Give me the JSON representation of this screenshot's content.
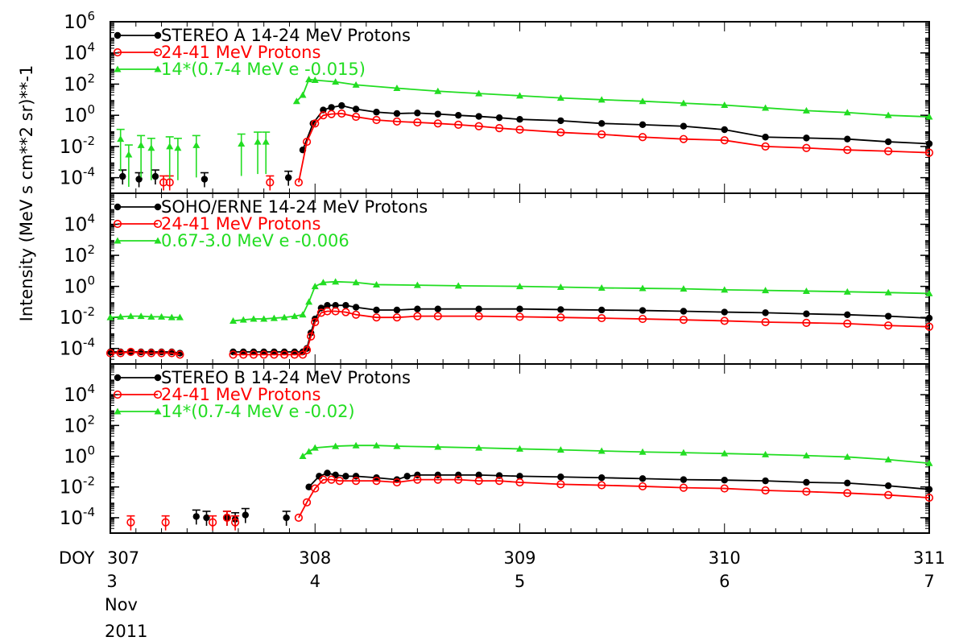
{
  "chart_data": {
    "type": "line",
    "ylabel": "Intensity (MeV s cm**2 sr)**-1",
    "y_scale": "log",
    "x_axis": {
      "label": "DOY",
      "range": [
        307,
        311
      ],
      "doy_ticks": [
        "307",
        "308",
        "309",
        "310",
        "311"
      ],
      "day_ticks": [
        "3",
        "4",
        "5",
        "6",
        "7"
      ],
      "month": "Nov",
      "year": "2011"
    },
    "colors": {
      "black": "#000000",
      "red": "#ff0000",
      "green": "#22dd22"
    },
    "panels": [
      {
        "ylim_exp": [
          -5,
          6
        ],
        "y_tick_exps": [
          6,
          4,
          2,
          0,
          -2,
          -4
        ],
        "series": [
          {
            "name": "STEREO A 14-24 MeV Protons",
            "color": "black",
            "marker": "dot",
            "x": [
              307.94,
              307.99,
              308.04,
              308.08,
              308.13,
              308.2,
              308.3,
              308.4,
              308.5,
              308.6,
              308.7,
              308.8,
              308.9,
              309.0,
              309.2,
              309.4,
              309.6,
              309.8,
              310.0,
              310.2,
              310.4,
              310.6,
              310.8,
              311.0
            ],
            "y": [
              0.006,
              0.3,
              2.2,
              3.2,
              4.2,
              2.5,
              1.6,
              1.3,
              1.4,
              1.2,
              1.0,
              0.85,
              0.7,
              0.55,
              0.45,
              0.3,
              0.25,
              0.2,
              0.12,
              0.04,
              0.035,
              0.03,
              0.02,
              0.015
            ],
            "sparse_x": [
              307.06,
              307.14,
              307.22,
              307.46,
              307.87
            ],
            "sparse_y": [
              0.00012,
              8e-05,
              0.00012,
              8e-05,
              0.0001
            ]
          },
          {
            "name": "24-41 MeV Protons",
            "color": "red",
            "marker": "circle",
            "x": [
              307.92,
              307.96,
              308.0,
              308.04,
              308.08,
              308.13,
              308.2,
              308.3,
              308.4,
              308.5,
              308.6,
              308.7,
              308.8,
              308.9,
              309.0,
              309.2,
              309.4,
              309.6,
              309.8,
              310.0,
              310.2,
              310.4,
              310.6,
              310.8,
              311.0
            ],
            "y": [
              5e-05,
              0.02,
              0.3,
              1.0,
              1.2,
              1.3,
              0.8,
              0.5,
              0.4,
              0.35,
              0.3,
              0.25,
              0.2,
              0.15,
              0.12,
              0.08,
              0.06,
              0.04,
              0.03,
              0.025,
              0.01,
              0.008,
              0.006,
              0.005,
              0.004
            ],
            "sparse_x": [
              307.26,
              307.29,
              307.78
            ],
            "sparse_y": [
              5e-05,
              5e-05,
              5e-05
            ]
          },
          {
            "name": "14*(0.7-4 MeV e -0.015)",
            "color": "green",
            "marker": "triangle",
            "x": [
              307.91,
              307.94,
              307.97,
              308.0,
              308.1,
              308.2,
              308.4,
              308.6,
              308.8,
              309.0,
              309.2,
              309.4,
              309.6,
              309.8,
              310.0,
              310.2,
              310.4,
              310.6,
              310.8,
              311.0
            ],
            "y": [
              8,
              20,
              200,
              180,
              140,
              90,
              55,
              35,
              25,
              18,
              13,
              10,
              8,
              6,
              4.5,
              3,
              2,
              1.5,
              1.0,
              0.8
            ],
            "sparse_x": [
              307.05,
              307.09,
              307.15,
              307.2,
              307.29,
              307.33,
              307.42,
              307.64,
              307.72,
              307.76
            ],
            "sparse_y": [
              0.03,
              0.003,
              0.012,
              0.008,
              0.01,
              0.008,
              0.012,
              0.015,
              0.02,
              0.02
            ]
          }
        ]
      },
      {
        "ylim_exp": [
          -5,
          6
        ],
        "y_tick_exps": [
          4,
          2,
          0,
          -2,
          -4
        ],
        "series": [
          {
            "name": "SOHO/ERNE 14-24 MeV Protons",
            "color": "black",
            "marker": "dot",
            "segments": [
              {
                "x": [
                  307.0,
                  307.05,
                  307.1,
                  307.15,
                  307.2,
                  307.25,
                  307.3,
                  307.34
                ],
                "y": [
                  6e-05,
                  6e-05,
                  6e-05,
                  6e-05,
                  6e-05,
                  6e-05,
                  6e-05,
                  5e-05
                ]
              },
              {
                "x": [
                  307.6,
                  307.65,
                  307.7,
                  307.75,
                  307.8,
                  307.85,
                  307.9,
                  307.94,
                  307.96,
                  307.98,
                  308.0,
                  308.03,
                  308.06,
                  308.1,
                  308.15,
                  308.2,
                  308.3,
                  308.4,
                  308.5,
                  308.6,
                  308.8,
                  309.0,
                  309.2,
                  309.4,
                  309.6,
                  309.8,
                  310.0,
                  310.2,
                  310.4,
                  310.6,
                  310.8,
                  311.0
                ],
                "y": [
                  6e-05,
                  6e-05,
                  6e-05,
                  6e-05,
                  6e-05,
                  6e-05,
                  6e-05,
                  6e-05,
                  0.0001,
                  0.001,
                  0.008,
                  0.04,
                  0.06,
                  0.06,
                  0.06,
                  0.045,
                  0.03,
                  0.03,
                  0.035,
                  0.035,
                  0.035,
                  0.035,
                  0.032,
                  0.03,
                  0.028,
                  0.025,
                  0.022,
                  0.02,
                  0.017,
                  0.015,
                  0.012,
                  0.009
                ]
              }
            ]
          },
          {
            "name": "24-41 MeV Protons",
            "color": "red",
            "marker": "circle",
            "segments": [
              {
                "x": [
                  307.0,
                  307.05,
                  307.1,
                  307.15,
                  307.2,
                  307.25,
                  307.3,
                  307.34
                ],
                "y": [
                  5e-05,
                  5e-05,
                  6e-05,
                  5e-05,
                  5e-05,
                  5e-05,
                  5e-05,
                  4e-05
                ]
              },
              {
                "x": [
                  307.6,
                  307.65,
                  307.7,
                  307.75,
                  307.8,
                  307.85,
                  307.9,
                  307.94,
                  307.96,
                  307.98,
                  308.0,
                  308.03,
                  308.06,
                  308.1,
                  308.15,
                  308.2,
                  308.3,
                  308.4,
                  308.5,
                  308.6,
                  308.8,
                  309.0,
                  309.2,
                  309.4,
                  309.6,
                  309.8,
                  310.0,
                  310.2,
                  310.4,
                  310.6,
                  310.8,
                  311.0
                ],
                "y": [
                  4e-05,
                  4e-05,
                  4e-05,
                  4e-05,
                  4e-05,
                  4e-05,
                  4e-05,
                  4e-05,
                  8e-05,
                  0.0006,
                  0.005,
                  0.02,
                  0.025,
                  0.025,
                  0.022,
                  0.015,
                  0.01,
                  0.01,
                  0.012,
                  0.012,
                  0.012,
                  0.011,
                  0.01,
                  0.009,
                  0.008,
                  0.007,
                  0.006,
                  0.005,
                  0.0045,
                  0.004,
                  0.003,
                  0.0025
                ]
              }
            ]
          },
          {
            "name": "0.67-3.0 MeV e -0.006",
            "color": "green",
            "marker": "triangle",
            "segments": [
              {
                "x": [
                  307.0,
                  307.05,
                  307.1,
                  307.15,
                  307.2,
                  307.25,
                  307.3,
                  307.34
                ],
                "y": [
                  0.01,
                  0.011,
                  0.012,
                  0.012,
                  0.011,
                  0.011,
                  0.01,
                  0.01
                ]
              },
              {
                "x": [
                  307.6,
                  307.65,
                  307.7,
                  307.75,
                  307.8,
                  307.85,
                  307.9,
                  307.94,
                  307.97,
                  308.0,
                  308.04,
                  308.1,
                  308.2,
                  308.3,
                  308.5,
                  308.7,
                  309.0,
                  309.2,
                  309.4,
                  309.6,
                  309.8,
                  310.0,
                  310.2,
                  310.4,
                  310.6,
                  310.8,
                  311.0
                ],
                "y": [
                  0.006,
                  0.007,
                  0.008,
                  0.008,
                  0.009,
                  0.01,
                  0.012,
                  0.015,
                  0.1,
                  1.0,
                  1.8,
                  2.0,
                  1.8,
                  1.3,
                  1.2,
                  1.1,
                  1.0,
                  0.9,
                  0.8,
                  0.75,
                  0.7,
                  0.6,
                  0.55,
                  0.5,
                  0.45,
                  0.4,
                  0.35
                ]
              }
            ]
          }
        ]
      },
      {
        "ylim_exp": [
          -5,
          6
        ],
        "y_tick_exps": [
          4,
          2,
          0,
          -2,
          -4
        ],
        "series": [
          {
            "name": "STEREO B 14-24 MeV Protons",
            "color": "black",
            "marker": "dot",
            "x": [
              307.97,
              308.02,
              308.06,
              308.1,
              308.15,
              308.2,
              308.3,
              308.4,
              308.45,
              308.5,
              308.6,
              308.7,
              308.8,
              308.9,
              309.0,
              309.2,
              309.4,
              309.6,
              309.8,
              310.0,
              310.2,
              310.4,
              310.6,
              310.8,
              311.0
            ],
            "y": [
              0.01,
              0.05,
              0.08,
              0.06,
              0.05,
              0.05,
              0.04,
              0.03,
              0.05,
              0.06,
              0.06,
              0.06,
              0.06,
              0.055,
              0.05,
              0.045,
              0.04,
              0.035,
              0.03,
              0.028,
              0.025,
              0.02,
              0.018,
              0.012,
              0.007
            ],
            "sparse_x": [
              307.42,
              307.47,
              307.57,
              307.61,
              307.66,
              307.86
            ],
            "sparse_y": [
              0.00012,
              0.0001,
              0.0001,
              8e-05,
              0.00015,
              0.0001
            ]
          },
          {
            "name": "24-41 MeV Protons",
            "color": "red",
            "marker": "circle",
            "x": [
              307.92,
              307.96,
              308.0,
              308.04,
              308.08,
              308.12,
              308.2,
              308.3,
              308.4,
              308.5,
              308.6,
              308.7,
              308.8,
              308.9,
              309.0,
              309.2,
              309.4,
              309.6,
              309.8,
              310.0,
              310.2,
              310.4,
              310.6,
              310.8,
              311.0
            ],
            "y": [
              0.0001,
              0.001,
              0.008,
              0.03,
              0.03,
              0.025,
              0.025,
              0.025,
              0.02,
              0.03,
              0.03,
              0.03,
              0.025,
              0.025,
              0.02,
              0.015,
              0.013,
              0.011,
              0.009,
              0.008,
              0.006,
              0.005,
              0.004,
              0.003,
              0.002
            ],
            "sparse_x": [
              307.1,
              307.27,
              307.5,
              307.57,
              307.61
            ],
            "sparse_y": [
              5e-05,
              5e-05,
              5e-05,
              0.0001,
              5e-05
            ]
          },
          {
            "name": "14*(0.7-4 MeV e -0.02)",
            "color": "green",
            "marker": "triangle",
            "x": [
              307.94,
              307.97,
              308.0,
              308.1,
              308.2,
              308.3,
              308.4,
              308.6,
              308.8,
              309.0,
              309.2,
              309.4,
              309.6,
              309.8,
              310.0,
              310.2,
              310.4,
              310.6,
              310.8,
              311.0
            ],
            "y": [
              1.0,
              2.0,
              3.5,
              4.5,
              5.0,
              5.0,
              4.5,
              4.0,
              3.5,
              3.0,
              2.6,
              2.2,
              1.9,
              1.7,
              1.5,
              1.3,
              1.1,
              0.9,
              0.6,
              0.35
            ]
          }
        ]
      }
    ]
  }
}
